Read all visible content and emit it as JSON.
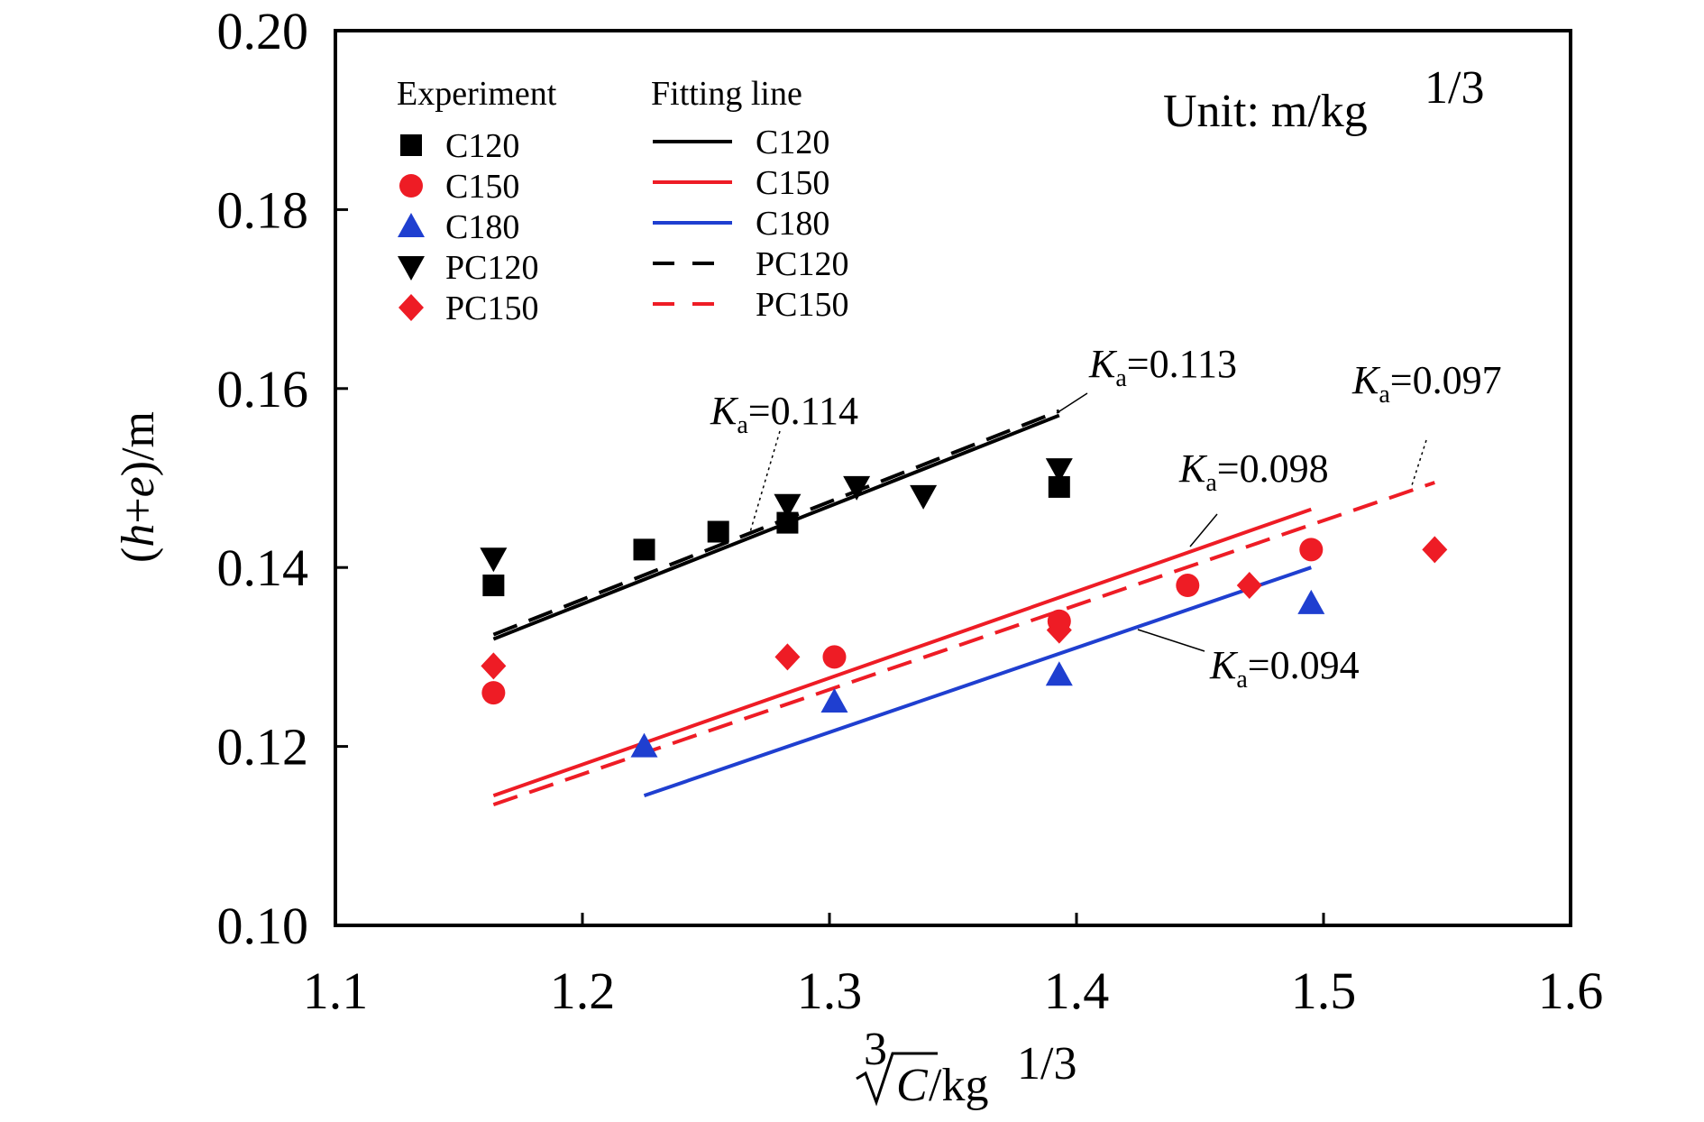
{
  "chart_data": {
    "type": "scatter",
    "xlim": [
      1.1,
      1.6
    ],
    "ylim": [
      0.1,
      0.2
    ],
    "x_ticks": [
      "1.1",
      "1.2",
      "1.3",
      "1.4",
      "1.5",
      "1.6"
    ],
    "y_ticks": [
      "0.10",
      "0.12",
      "0.14",
      "0.16",
      "0.18",
      "0.20"
    ],
    "grid": false,
    "xlabel": {
      "root_index": "3",
      "radicand": "C",
      "unit": "/kg",
      "exponent": "1/3"
    },
    "ylabel": {
      "open": "(",
      "h": "h",
      "plus": "+",
      "e": "e",
      "close": ")/m"
    },
    "unit_note": {
      "text": "Unit: m/kg",
      "exponent": "1/3"
    },
    "legend": {
      "experiment_title": "Experiment",
      "fitting_title": "Fitting line",
      "experiment_entries": [
        {
          "label": "C120",
          "marker": "square",
          "color": "#000000"
        },
        {
          "label": "C150",
          "marker": "circle",
          "color": "#ee1c25"
        },
        {
          "label": "C180",
          "marker": "triangle-up",
          "color": "#1f3fd0"
        },
        {
          "label": "PC120",
          "marker": "triangle-down",
          "color": "#000000"
        },
        {
          "label": "PC150",
          "marker": "diamond",
          "color": "#ee1c25"
        }
      ],
      "fitting_entries": [
        {
          "label": "C120",
          "style": "solid",
          "color": "#000000"
        },
        {
          "label": "C150",
          "style": "solid",
          "color": "#ee1c25"
        },
        {
          "label": "C180",
          "style": "solid",
          "color": "#1f3fd0"
        },
        {
          "label": "PC120",
          "style": "dashed",
          "color": "#000000"
        },
        {
          "label": "PC150",
          "style": "dashed",
          "color": "#ee1c25"
        }
      ]
    },
    "series": [
      {
        "name": "C120",
        "marker": "square",
        "color": "#000000",
        "points": [
          [
            1.164,
            0.138
          ],
          [
            1.225,
            0.142
          ],
          [
            1.255,
            0.144
          ],
          [
            1.283,
            0.145
          ],
          [
            1.393,
            0.149
          ]
        ]
      },
      {
        "name": "C150",
        "marker": "circle",
        "color": "#ee1c25",
        "points": [
          [
            1.164,
            0.126
          ],
          [
            1.302,
            0.13
          ],
          [
            1.393,
            0.134
          ],
          [
            1.445,
            0.138
          ],
          [
            1.495,
            0.142
          ]
        ]
      },
      {
        "name": "C180",
        "marker": "triangle-up",
        "color": "#1f3fd0",
        "points": [
          [
            1.225,
            0.12
          ],
          [
            1.302,
            0.125
          ],
          [
            1.393,
            0.128
          ],
          [
            1.495,
            0.136
          ]
        ]
      },
      {
        "name": "PC120",
        "marker": "triangle-down",
        "color": "#000000",
        "points": [
          [
            1.164,
            0.141
          ],
          [
            1.283,
            0.147
          ],
          [
            1.311,
            0.149
          ],
          [
            1.338,
            0.148
          ],
          [
            1.393,
            0.151
          ]
        ]
      },
      {
        "name": "PC150",
        "marker": "diamond",
        "color": "#ee1c25",
        "points": [
          [
            1.164,
            0.129
          ],
          [
            1.283,
            0.13
          ],
          [
            1.393,
            0.133
          ],
          [
            1.47,
            0.138
          ],
          [
            1.545,
            0.142
          ]
        ]
      }
    ],
    "fit_lines": [
      {
        "name": "C120",
        "style": "solid",
        "color": "#000000",
        "x": [
          1.164,
          1.393
        ],
        "y": [
          0.132,
          0.157
        ]
      },
      {
        "name": "PC120",
        "style": "dashed",
        "color": "#000000",
        "x": [
          1.164,
          1.393
        ],
        "y": [
          0.1325,
          0.1575
        ]
      },
      {
        "name": "C150",
        "style": "solid",
        "color": "#ee1c25",
        "x": [
          1.164,
          1.495
        ],
        "y": [
          0.1145,
          0.1465
        ]
      },
      {
        "name": "PC150",
        "style": "dashed",
        "color": "#ee1c25",
        "x": [
          1.164,
          1.545
        ],
        "y": [
          0.1135,
          0.1495
        ]
      },
      {
        "name": "C180",
        "style": "solid",
        "color": "#1f3fd0",
        "x": [
          1.225,
          1.495
        ],
        "y": [
          0.1145,
          0.14
        ]
      }
    ],
    "annotations": [
      {
        "k": "K",
        "sub": "a",
        "value": "=0.114"
      },
      {
        "k": "K",
        "sub": "a",
        "value": "=0.113"
      },
      {
        "k": "K",
        "sub": "a",
        "value": "=0.097"
      },
      {
        "k": "K",
        "sub": "a",
        "value": "=0.098"
      },
      {
        "k": "K",
        "sub": "a",
        "value": "=0.094"
      }
    ]
  }
}
